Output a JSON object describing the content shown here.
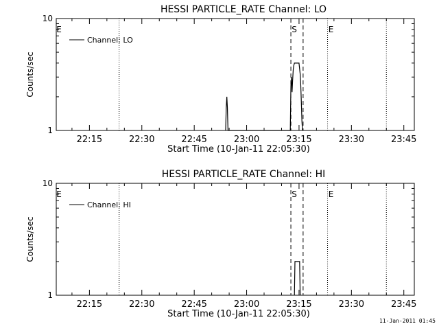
{
  "footer": {
    "timestamp": "11-Jan-2011 01:45"
  },
  "chart_data": [
    {
      "type": "line",
      "title": "HESSI PARTICLE_RATE Channel: LO",
      "xlabel": "Start Time (10-Jan-11 22:05:30)",
      "ylabel": "Counts/sec",
      "yscale": "log",
      "ylim": [
        1,
        10
      ],
      "xlim": [
        "22:05:30",
        "23:48:00"
      ],
      "ytick_labels": [
        "1",
        "10"
      ],
      "xtick_labels": [
        "22:15",
        "22:30",
        "22:45",
        "23:00",
        "23:15",
        "23:30",
        "23:45"
      ],
      "legend": {
        "label": "Channel: LO",
        "placement": "top-left"
      },
      "markers": [
        {
          "label": "E",
          "time": "22:05:30",
          "style": "dotted"
        },
        {
          "label": "",
          "time": "22:23:30",
          "style": "dotted"
        },
        {
          "label": "S",
          "time": "23:12:40",
          "style": "dashed"
        },
        {
          "label": "",
          "time": "23:16:10",
          "style": "dashed"
        },
        {
          "label": "E",
          "time": "23:23:10",
          "style": "dotted"
        },
        {
          "label": "",
          "time": "23:40:00",
          "style": "dotted"
        }
      ],
      "series": [
        {
          "x": [
            "22:54:00",
            "22:54:10",
            "22:54:20",
            "22:54:30",
            "22:54:40",
            "22:54:50",
            "23:12:30",
            "23:12:40",
            "23:12:50",
            "23:13:00",
            "23:13:10",
            "23:13:20",
            "23:13:30",
            "23:13:40",
            "23:13:50",
            "23:14:00",
            "23:14:20",
            "23:14:40",
            "23:15:00",
            "23:15:20",
            "23:15:30",
            "23:15:40",
            "23:15:50",
            "23:16:00"
          ],
          "y": [
            1,
            1.6,
            2,
            1.6,
            1,
            1,
            1,
            2.5,
            3,
            2.2,
            2.8,
            3.5,
            3.8,
            4,
            4,
            4,
            4,
            4,
            4,
            3.2,
            2.5,
            1.8,
            1.2,
            1
          ]
        }
      ]
    },
    {
      "type": "line",
      "title": "HESSI PARTICLE_RATE Channel: HI",
      "xlabel": "Start Time (10-Jan-11 22:05:30)",
      "ylabel": "Counts/sec",
      "yscale": "log",
      "ylim": [
        1,
        10
      ],
      "xlim": [
        "22:05:30",
        "23:48:00"
      ],
      "ytick_labels": [
        "1",
        "10"
      ],
      "xtick_labels": [
        "22:15",
        "22:30",
        "22:45",
        "23:00",
        "23:15",
        "23:30",
        "23:45"
      ],
      "legend": {
        "label": "Channel: HI",
        "placement": "top-left"
      },
      "markers": [
        {
          "label": "E",
          "time": "22:05:30",
          "style": "dotted"
        },
        {
          "label": "",
          "time": "22:23:30",
          "style": "dotted"
        },
        {
          "label": "S",
          "time": "23:12:40",
          "style": "dashed"
        },
        {
          "label": "",
          "time": "23:16:10",
          "style": "dashed"
        },
        {
          "label": "E",
          "time": "23:23:10",
          "style": "dotted"
        },
        {
          "label": "",
          "time": "23:40:00",
          "style": "dotted"
        }
      ],
      "series": [
        {
          "x": [
            "23:13:40",
            "23:13:50",
            "23:14:00",
            "23:14:20",
            "23:14:40",
            "23:15:00",
            "23:15:10",
            "23:15:20"
          ],
          "y": [
            1,
            2,
            2,
            2,
            2,
            2,
            2,
            1
          ]
        }
      ]
    }
  ]
}
